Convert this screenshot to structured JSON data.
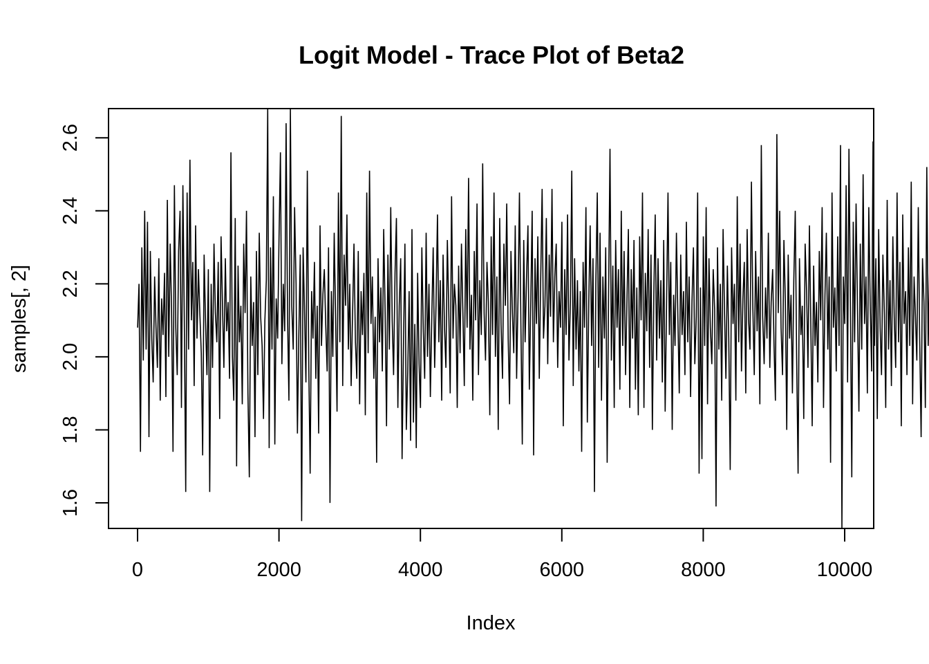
{
  "chart_data": {
    "type": "line",
    "title": "Logit Model - Trace Plot of Beta2",
    "xlabel": "Index",
    "ylabel": "samples[, 2]",
    "xlim": [
      0,
      10000
    ],
    "ylim": [
      1.53,
      2.68
    ],
    "x_ticks": [
      0,
      2000,
      4000,
      6000,
      8000,
      10000
    ],
    "x_tick_labels": [
      "0",
      "2000",
      "4000",
      "6000",
      "8000",
      "10000"
    ],
    "y_ticks": [
      1.6,
      1.8,
      2.0,
      2.2,
      2.4,
      2.6
    ],
    "y_tick_labels": [
      "1.6",
      "1.8",
      "2.0",
      "2.2",
      "2.4",
      "2.6"
    ],
    "grid": false,
    "legend": "none",
    "line_color": "#000000",
    "series": [
      {
        "x_start": 1,
        "x_step": 20,
        "summary": {
          "n_samples": 10000,
          "mean": 2.1,
          "min": 1.53,
          "max": 2.68
        },
        "values": [
          2.08,
          2.2,
          1.74,
          2.3,
          1.99,
          2.4,
          2.02,
          2.37,
          1.78,
          2.29,
          2.05,
          1.93,
          2.22,
          2.08,
          1.97,
          2.27,
          1.88,
          2.16,
          2.06,
          2.23,
          1.89,
          2.43,
          2.0,
          2.31,
          2.13,
          1.74,
          2.47,
          2.08,
          1.95,
          2.29,
          2.4,
          1.86,
          2.47,
          2.11,
          1.63,
          2.45,
          2.02,
          2.54,
          2.1,
          2.26,
          1.92,
          2.36,
          2.05,
          2.24,
          2.12,
          2.01,
          1.73,
          2.28,
          2.1,
          1.95,
          2.24,
          1.63,
          2.2,
          1.97,
          2.31,
          2.12,
          2.04,
          2.26,
          1.83,
          2.33,
          2.14,
          1.97,
          2.27,
          2.07,
          2.15,
          1.94,
          2.56,
          2.0,
          1.88,
          2.38,
          1.7,
          2.25,
          2.04,
          2.14,
          1.87,
          2.31,
          2.12,
          2.4,
          1.9,
          1.67,
          2.22,
          2.03,
          2.15,
          1.78,
          2.29,
          1.95,
          2.34,
          2.11,
          2.03,
          1.83,
          2.1,
          2.21,
          2.68,
          1.75,
          2.3,
          2.02,
          2.44,
          1.76,
          2.16,
          2.05,
          2.33,
          2.56,
          1.98,
          2.2,
          2.07,
          2.64,
          2.11,
          1.88,
          2.68,
          2.14,
          2.02,
          2.41,
          2.2,
          1.79,
          2.06,
          2.28,
          1.55,
          2.3,
          2.13,
          1.93,
          2.51,
          1.98,
          1.68,
          2.18,
          2.05,
          2.26,
          1.94,
          2.14,
          1.79,
          2.36,
          2.03,
          2.17,
          2.24,
          2.09,
          1.96,
          2.3,
          1.6,
          2.18,
          2.0,
          2.34,
          2.11,
          1.85,
          2.45,
          2.04,
          2.66,
          1.92,
          2.28,
          2.14,
          2.39,
          2.02,
          2.2,
          1.92,
          2.12,
          2.31,
          2.04,
          1.94,
          2.29,
          1.87,
          2.18,
          2.06,
          2.23,
          1.84,
          2.45,
          2.01,
          2.51,
          2.09,
          2.22,
          1.94,
          2.11,
          1.71,
          2.27,
          2.04,
          2.19,
          1.96,
          2.35,
          2.12,
          1.81,
          2.28,
          2.02,
          2.41,
          2.1,
          1.95,
          2.23,
          2.38,
          1.86,
          2.14,
          2.27,
          1.72,
          2.04,
          2.31,
          1.8,
          1.96,
          2.18,
          1.77,
          2.35,
          1.82,
          2.09,
          1.75,
          2.23,
          1.98,
          1.86,
          2.3,
          2.07,
          1.94,
          2.34,
          2.0,
          2.2,
          1.89,
          2.11,
          2.3,
          1.97,
          2.14,
          2.39,
          2.04,
          2.21,
          1.88,
          2.28,
          2.08,
          1.97,
          2.32,
          2.13,
          1.9,
          2.44,
          2.05,
          2.2,
          2.14,
          1.86,
          2.25,
          2.01,
          2.31,
          2.12,
          1.92,
          2.35,
          2.08,
          2.49,
          2.02,
          2.17,
          1.88,
          2.29,
          2.1,
          2.42,
          1.95,
          2.21,
          2.06,
          2.53,
          2.12,
          1.99,
          2.26,
          2.15,
          1.84,
          2.33,
          2.06,
          2.45,
          2.0,
          2.22,
          1.8,
          2.38,
          2.09,
          1.94,
          2.31,
          2.14,
          2.42,
          2.05,
          1.87,
          2.29,
          2.12,
          2.01,
          2.36,
          1.94,
          2.17,
          2.45,
          2.09,
          1.76,
          2.32,
          2.04,
          2.22,
          2.36,
          1.91,
          2.15,
          2.4,
          1.73,
          2.27,
          2.09,
          2.33,
          1.94,
          2.21,
          2.46,
          2.05,
          2.14,
          2.38,
          1.98,
          2.28,
          2.11,
          2.46,
          2.04,
          2.22,
          2.31,
          1.97,
          2.18,
          2.08,
          2.37,
          1.81,
          2.24,
          2.06,
          2.39,
          1.99,
          2.15,
          2.51,
          1.92,
          2.27,
          2.02,
          2.21,
          1.96,
          2.18,
          1.74,
          2.26,
          2.08,
          2.41,
          1.82,
          2.15,
          2.36,
          2.03,
          2.27,
          1.63,
          2.2,
          2.45,
          1.97,
          2.34,
          1.88,
          2.22,
          2.05,
          2.3,
          1.71,
          2.16,
          2.57,
          1.99,
          2.25,
          1.86,
          2.32,
          2.08,
          2.24,
          1.91,
          2.4,
          2.03,
          2.29,
          1.95,
          2.15,
          2.35,
          1.86,
          2.24,
          2.05,
          2.32,
          1.91,
          2.19,
          1.84,
          2.33,
          2.1,
          2.45,
          1.86,
          2.23,
          2.07,
          2.35,
          1.97,
          2.28,
          1.8,
          2.17,
          2.39,
          1.99,
          2.27,
          2.05,
          2.21,
          1.93,
          2.32,
          1.85,
          2.14,
          2.45,
          2.06,
          2.26,
          1.8,
          2.17,
          2.03,
          2.34,
          2.11,
          1.9,
          2.28,
          2.06,
          2.18,
          1.95,
          2.37,
          2.04,
          2.22,
          1.89,
          2.15,
          2.3,
          1.98,
          2.11,
          2.45,
          1.68,
          2.19,
          1.72,
          2.33,
          2.03,
          2.41,
          1.87,
          2.27,
          2.08,
          1.98,
          2.24,
          2.13,
          1.59,
          2.3,
          2.02,
          2.2,
          1.88,
          2.35,
          2.12,
          1.94,
          2.25,
          2.05,
          1.69,
          2.3,
          2.09,
          2.2,
          1.88,
          2.44,
          2.04,
          2.31,
          1.96,
          2.16,
          2.26,
          1.9,
          2.35,
          2.1,
          2.02,
          2.48,
          2.14,
          1.95,
          2.29,
          2.07,
          2.22,
          1.87,
          2.58,
          2.11,
          1.98,
          2.19,
          2.05,
          2.34,
          1.97,
          2.15,
          2.24,
          2.03,
          1.88,
          2.61,
          2.12,
          2.4,
          2.08,
          1.95,
          2.32,
          2.15,
          1.8,
          2.28,
          2.05,
          2.17,
          1.9,
          2.21,
          2.4,
          2.0,
          1.68,
          2.27,
          2.06,
          2.14,
          1.83,
          2.31,
          2.18,
          1.97,
          2.36,
          2.09,
          1.81,
          2.25,
          2.03,
          2.15,
          1.93,
          2.29,
          2.1,
          2.41,
          1.86,
          2.17,
          2.34,
          2.02,
          2.22,
          1.71,
          2.45,
          2.08,
          2.19,
          1.96,
          2.33,
          2.03,
          2.58,
          1.53,
          2.22,
          2.09,
          2.47,
          1.93,
          2.57,
          2.15,
          1.67,
          2.37,
          2.04,
          2.42,
          2.14,
          1.85,
          2.31,
          2.02,
          2.5,
          2.09,
          2.22,
          1.9,
          2.41,
          2.15,
          1.96,
          2.59,
          2.03,
          2.27,
          1.83,
          2.35,
          2.08,
          1.95,
          2.28,
          2.12,
          1.86,
          2.43,
          2.02,
          2.21,
          1.92,
          2.33,
          2.11,
          1.97,
          2.45,
          2.04,
          2.26,
          1.81,
          2.39,
          2.09,
          2.18,
          1.95,
          2.3,
          2.03,
          2.48,
          1.87,
          2.22,
          2.11,
          1.99,
          2.41,
          2.05,
          1.78,
          2.27,
          2.15,
          1.86,
          2.52,
          2.03,
          2.24,
          1.9,
          2.33,
          2.08,
          1.74,
          2.38,
          2.14,
          2.01,
          2.55,
          1.94,
          2.27,
          2.06,
          2.4,
          1.85,
          2.21,
          2.1,
          1.97,
          2.46,
          2.02,
          2.3,
          1.88,
          2.16,
          2.35,
          1.96,
          2.22,
          2.07,
          1.68,
          2.39,
          2.12,
          1.96,
          2.28,
          2.02,
          2.47,
          1.9,
          2.31,
          2.08,
          2.18,
          1.77,
          2.36,
          2.05,
          2.25,
          1.94,
          2.4,
          2.0,
          2.21,
          2.56,
          1.91,
          2.34,
          2.11,
          1.79,
          2.28,
          2.04,
          2.19,
          1.86,
          2.47,
          2.09,
          1.98,
          2.3,
          1.72,
          2.25,
          2.06,
          2.44,
          1.95,
          2.16,
          2.04,
          2.3,
          1.89,
          2.19,
          2.08,
          1.85,
          2.33,
          2.01,
          2.22,
          1.76,
          2.27,
          2.06,
          2.17,
          1.94,
          2.38,
          2.03,
          2.13,
          1.72,
          2.29,
          2.07,
          1.91,
          2.25,
          1.82,
          2.33,
          2.02,
          2.2,
          1.69,
          2.36,
          1.98,
          2.15,
          1.88,
          2.29,
          2.06,
          2.44,
          1.94,
          2.23,
          2.03,
          1.85,
          2.31,
          2.12,
          1.96,
          2.4,
          2.05,
          1.77,
          2.26,
          2.09,
          2.46,
          1.89,
          2.21,
          2.03,
          2.35,
          1.92,
          2.14,
          1.73,
          2.29,
          2.08,
          2.53,
          1.97,
          2.2,
          2.05,
          2.39,
          1.86,
          2.25,
          2.1,
          2.45,
          1.94,
          2.18,
          1.79,
          2.33,
          2.06,
          2.27,
          1.97,
          2.42,
          2.02,
          2.2,
          1.83,
          2.36,
          2.07,
          1.9,
          2.24,
          2.14,
          2.52,
          1.94,
          2.27,
          1.72,
          2.18,
          2.05,
          2.34,
          1.93,
          2.23,
          1.88,
          2.15,
          2.35,
          2.0,
          2.21,
          1.87,
          2.1,
          2.0
        ]
      }
    ]
  }
}
